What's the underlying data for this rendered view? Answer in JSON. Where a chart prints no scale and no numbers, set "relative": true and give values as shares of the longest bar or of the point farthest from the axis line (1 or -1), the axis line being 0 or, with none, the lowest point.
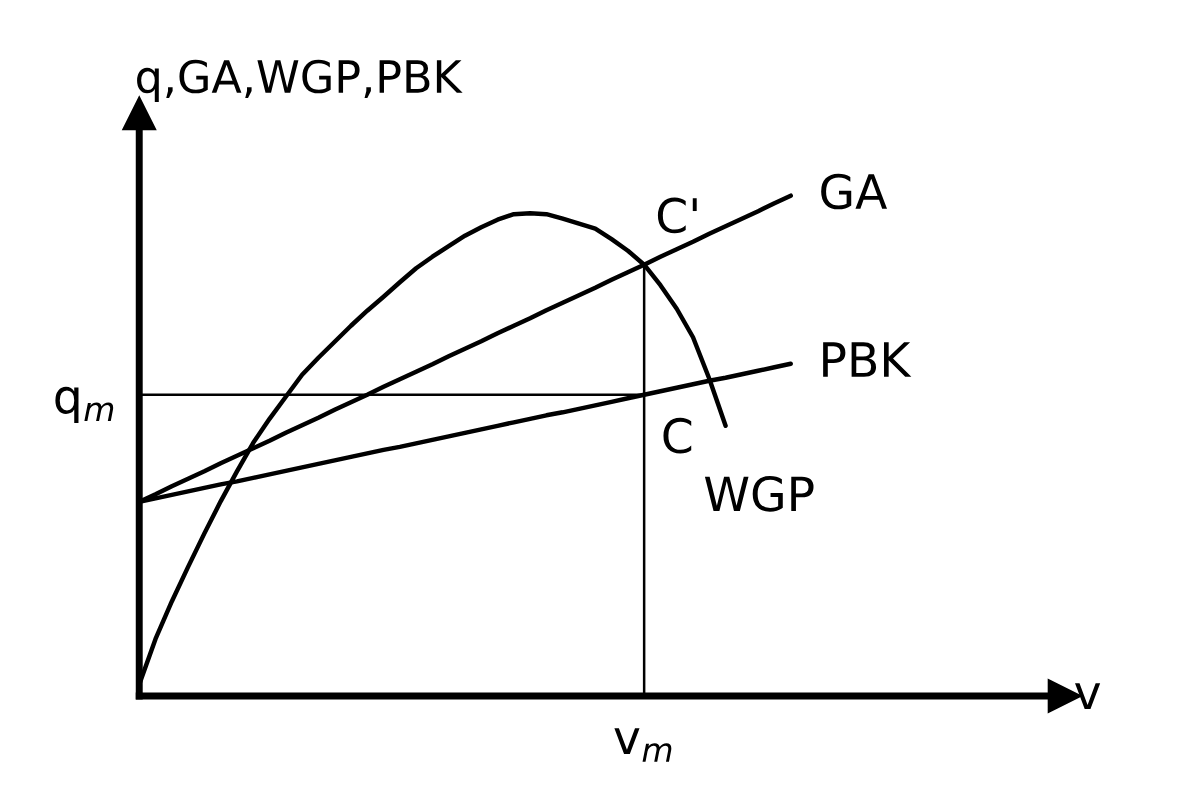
{
  "chart_data": {
    "type": "line",
    "relative": true,
    "ylabel": "q,GA,WGP,PBK",
    "xlabel": "v",
    "marker": "none",
    "line_style": "solid",
    "categories": [
      null,
      null,
      null,
      null,
      null,
      null,
      null,
      null,
      null,
      null,
      null,
      null,
      null,
      null,
      null,
      null,
      null,
      null,
      null,
      null,
      null,
      null,
      null,
      null,
      null,
      null,
      null,
      null,
      null,
      null,
      null,
      null,
      null,
      null,
      null,
      null,
      null,
      null,
      null,
      null,
      null,
      null,
      null,
      null,
      null,
      null,
      null,
      null,
      null,
      null,
      null,
      null,
      null,
      null,
      null,
      null,
      null
    ],
    "series": [
      {
        "name": "GA",
        "color": "#000000",
        "values": [
          0.388,
          0.403,
          0.419,
          0.434,
          0.449,
          0.465,
          0.48,
          0.495,
          0.51,
          0.526,
          0.541,
          0.556,
          0.572,
          0.587,
          0.602,
          0.618,
          0.633,
          0.648,
          0.663,
          0.679,
          0.694,
          0.709,
          0.725,
          0.74,
          0.755,
          0.771,
          0.786,
          0.801,
          0.816,
          0.832,
          0.847,
          0.862,
          0.878,
          0.893,
          0.908,
          0.924,
          0.939,
          0.954,
          0.969,
          0.985,
          1,
          null,
          null,
          null,
          null,
          null,
          null,
          null,
          null,
          null,
          null,
          null,
          null,
          null,
          null,
          null,
          null
        ]
      },
      {
        "name": "PBK",
        "color": "#000000",
        "values": [
          0.388,
          0.395,
          0.402,
          0.409,
          0.416,
          0.423,
          0.429,
          0.436,
          0.443,
          0.45,
          0.457,
          0.464,
          0.471,
          0.478,
          0.485,
          0.492,
          0.498,
          0.505,
          0.512,
          0.519,
          0.526,
          0.533,
          0.54,
          0.547,
          0.554,
          0.561,
          0.567,
          0.574,
          0.581,
          0.588,
          0.595,
          0.602,
          0.609,
          0.616,
          0.623,
          0.63,
          0.636,
          0.643,
          0.65,
          0.657,
          0.664,
          null,
          null,
          null,
          null,
          null,
          null,
          null,
          null,
          null,
          null,
          null,
          null,
          null,
          null,
          null,
          null
        ]
      },
      {
        "name": "WGP",
        "color": "#000000",
        "values": [
          0.023,
          0.114,
          0.189,
          0.258,
          0.325,
          0.389,
          0.449,
          0.506,
          0.554,
          0.598,
          0.642,
          0.676,
          0.708,
          0.74,
          0.77,
          0.798,
          0.827,
          0.855,
          0.878,
          0.899,
          0.92,
          0.937,
          0.952,
          0.963,
          0.965,
          0.963,
          0.954,
          0.944,
          0.934,
          0.913,
          0.89,
          0.862,
          0.821,
          0.774,
          0.717,
          0.634,
          0.54,
          null,
          null,
          null,
          null,
          null,
          null,
          null,
          null,
          null,
          null,
          null,
          null,
          null,
          null,
          null,
          null,
          null,
          null,
          null,
          null
        ]
      }
    ],
    "ref_lines": [
      {
        "axis": "y",
        "value": 0.602,
        "label": "q$_{m}$",
        "color": "#000000"
      }
    ],
    "annotations": [
      "C'",
      "C",
      "v$_{m}$"
    ]
  }
}
